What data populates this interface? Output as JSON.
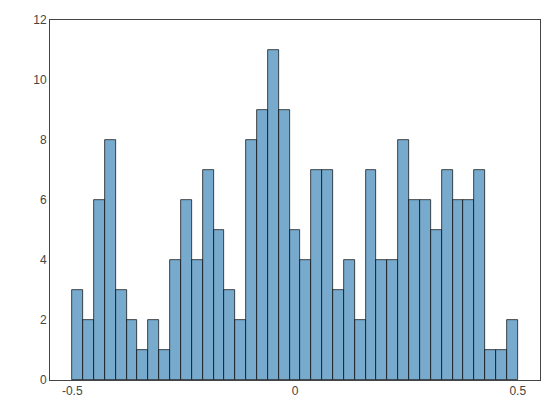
{
  "chart_data": {
    "type": "histogram",
    "bins": [
      -0.5,
      -0.475609756097561,
      -0.451219512195122,
      -0.426829268292683,
      -0.402439024390244,
      -0.378048780487805,
      -0.353658536585366,
      -0.329268292682927,
      -0.304878048780488,
      -0.280487804878049,
      -0.25609756097561,
      -0.231707317073171,
      -0.207317073170732,
      -0.182926829268293,
      -0.158536585365854,
      -0.134146341463415,
      -0.109756097560976,
      -0.085365853658537,
      -0.060975609756098,
      -0.036585365853659,
      -0.01219512195122,
      0.01219512195122,
      0.036585365853659,
      0.060975609756098,
      0.085365853658537,
      0.109756097560976,
      0.134146341463415,
      0.158536585365854,
      0.182926829268293,
      0.207317073170732,
      0.231707317073171,
      0.25609756097561,
      0.280487804878049,
      0.304878048780488,
      0.329268292682927,
      0.353658536585366,
      0.378048780487805,
      0.402439024390244,
      0.426829268292683,
      0.451219512195122,
      0.475609756097561,
      0.5
    ],
    "values": [
      3,
      2,
      6,
      8,
      3,
      2,
      1,
      2,
      1,
      4,
      6,
      4,
      7,
      5,
      3,
      2,
      8,
      9,
      11,
      9,
      5,
      4,
      7,
      7,
      3,
      4,
      2,
      7,
      4,
      4,
      8,
      6,
      6,
      5,
      7,
      6,
      6,
      7,
      1,
      1,
      2
    ],
    "color": "#77AACC",
    "xlim": [
      -0.55,
      0.55
    ],
    "xticks": [
      -0.5,
      0,
      0.5
    ],
    "ylim": [
      0,
      12
    ],
    "yticks": [
      0,
      2,
      4,
      6,
      8,
      10,
      12
    ],
    "grid": false
  }
}
